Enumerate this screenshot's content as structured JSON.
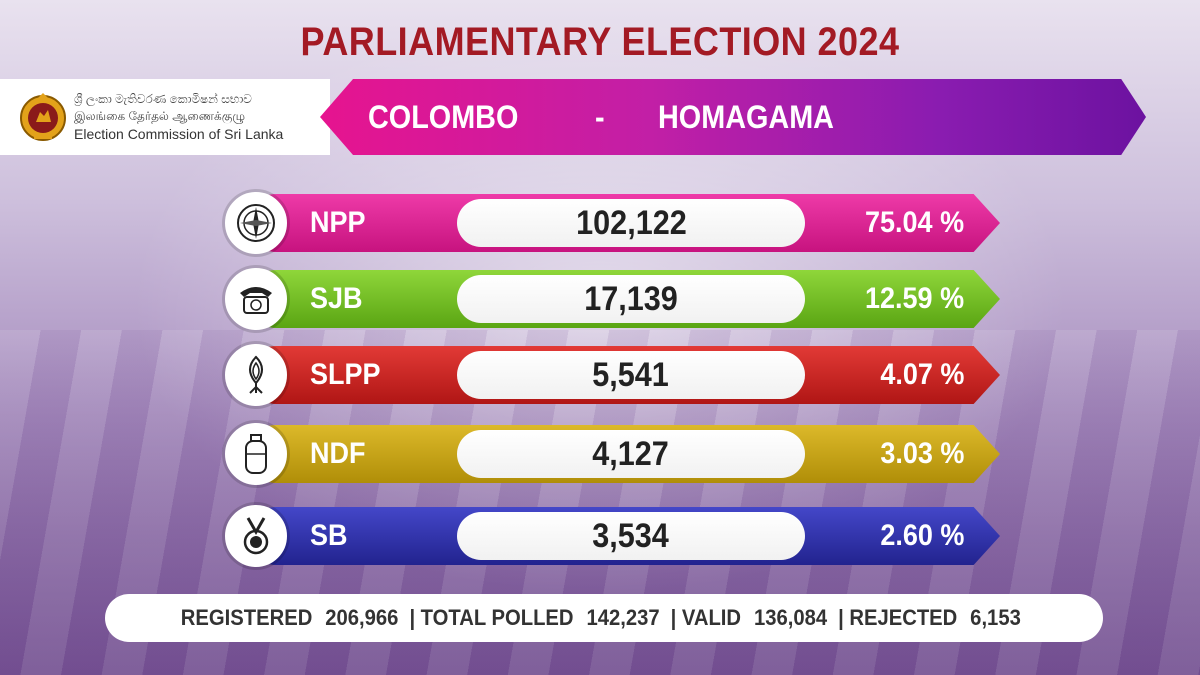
{
  "title": "PARLIAMENTARY ELECTION 2024",
  "logo": {
    "line1": "ශ්‍රී ලංකා මැතිවරණ කොමිෂන් සභාව",
    "line2": "இலங்கை தேர்தல் ஆணைக்குழு",
    "line3": "Election Commission of Sri Lanka"
  },
  "banner": {
    "district": "COLOMBO",
    "separator": "-",
    "division": "HOMAGAMA"
  },
  "parties": [
    {
      "name": "NPP",
      "votes": "102,122",
      "percent": "75.04 %",
      "color": "#d81b8f",
      "icon": "compass-icon"
    },
    {
      "name": "SJB",
      "votes": "17,139",
      "percent": "12.59 %",
      "color": "#6fbf1e",
      "icon": "telephone-icon"
    },
    {
      "name": "SLPP",
      "votes": "5,541",
      "percent": "4.07 %",
      "color": "#c4201e",
      "icon": "lotus-bud-icon"
    },
    {
      "name": "NDF",
      "votes": "4,127",
      "percent": "3.03 %",
      "color": "#c8a412",
      "icon": "gas-cylinder-icon"
    },
    {
      "name": "SB",
      "votes": "3,534",
      "percent": "2.60 %",
      "color": "#2d2fa8",
      "icon": "medal-icon"
    }
  ],
  "summary": {
    "registered_label": "REGISTERED",
    "registered_value": "206,966",
    "polled_label": "TOTAL POLLED",
    "polled_value": "142,237",
    "valid_label": "VALID",
    "valid_value": "136,084",
    "rejected_label": "REJECTED",
    "rejected_value": "6,153",
    "separator": "|"
  }
}
